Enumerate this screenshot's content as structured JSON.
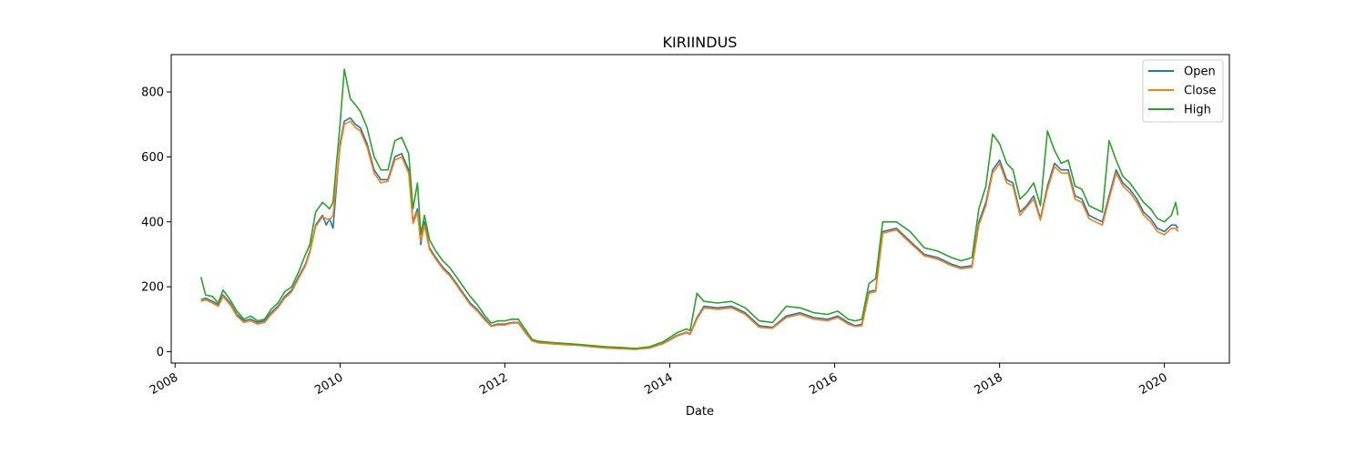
{
  "chart_data": {
    "type": "line",
    "title": "KIRIINDUS",
    "xlabel": "Date",
    "ylabel": "",
    "x_ticks": [
      "2008",
      "2010",
      "2012",
      "2014",
      "2016",
      "2018",
      "2020"
    ],
    "y_ticks": [
      "0",
      "200",
      "400",
      "600",
      "800"
    ],
    "xlim": [
      "2007-12-15",
      "2020-10-15"
    ],
    "ylim": [
      -35,
      915
    ],
    "legend_position": "top-right",
    "grid": false,
    "x": [
      "2008-04-25",
      "2008-05-15",
      "2008-06-15",
      "2008-07-10",
      "2008-08-01",
      "2008-09-01",
      "2008-10-01",
      "2008-11-01",
      "2008-12-01",
      "2009-01-01",
      "2009-02-01",
      "2009-03-01",
      "2009-04-01",
      "2009-05-01",
      "2009-06-01",
      "2009-07-01",
      "2009-08-01",
      "2009-08-20",
      "2009-09-15",
      "2009-10-15",
      "2009-11-01",
      "2009-11-15",
      "2009-12-01",
      "2010-01-01",
      "2010-01-20",
      "2010-02-15",
      "2010-03-10",
      "2010-04-01",
      "2010-05-01",
      "2010-06-01",
      "2010-07-01",
      "2010-08-01",
      "2010-09-01",
      "2010-10-01",
      "2010-11-01",
      "2010-11-20",
      "2010-12-10",
      "2010-12-25",
      "2011-01-10",
      "2011-02-01",
      "2011-03-01",
      "2011-04-01",
      "2011-05-01",
      "2011-06-01",
      "2011-07-01",
      "2011-08-01",
      "2011-09-01",
      "2011-10-01",
      "2011-11-01",
      "2011-12-01",
      "2012-01-01",
      "2012-02-01",
      "2012-03-01",
      "2012-04-01",
      "2012-05-01",
      "2012-06-01",
      "2012-08-01",
      "2012-10-01",
      "2012-12-01",
      "2013-02-01",
      "2013-04-01",
      "2013-06-01",
      "2013-08-01",
      "2013-10-01",
      "2013-12-01",
      "2014-02-01",
      "2014-03-15",
      "2014-04-01",
      "2014-05-01",
      "2014-06-01",
      "2014-08-01",
      "2014-10-01",
      "2014-11-01",
      "2014-12-01",
      "2015-02-01",
      "2015-04-01",
      "2015-06-01",
      "2015-08-01",
      "2015-10-01",
      "2015-12-01",
      "2016-01-15",
      "2016-03-01",
      "2016-04-01",
      "2016-05-01",
      "2016-06-01",
      "2016-07-01",
      "2016-08-01",
      "2016-10-01",
      "2016-12-01",
      "2017-02-01",
      "2017-04-01",
      "2017-06-01",
      "2017-07-15",
      "2017-09-01",
      "2017-10-01",
      "2017-11-01",
      "2017-12-01",
      "2018-01-01",
      "2018-02-01",
      "2018-03-01",
      "2018-04-01",
      "2018-05-01",
      "2018-06-01",
      "2018-07-01",
      "2018-08-01",
      "2018-09-01",
      "2018-10-01",
      "2018-11-01",
      "2018-12-01",
      "2019-01-01",
      "2019-02-01",
      "2019-03-01",
      "2019-04-01",
      "2019-05-01",
      "2019-06-01",
      "2019-07-01",
      "2019-08-01",
      "2019-09-01",
      "2019-10-01",
      "2019-11-01",
      "2019-12-01",
      "2020-01-01",
      "2020-02-01",
      "2020-02-20",
      "2020-03-01"
    ],
    "series": [
      {
        "name": "Open",
        "color": "#1f77b4",
        "values": [
          160,
          165,
          155,
          145,
          175,
          150,
          115,
          95,
          100,
          90,
          95,
          120,
          140,
          170,
          190,
          230,
          270,
          310,
          390,
          420,
          390,
          410,
          380,
          640,
          710,
          720,
          700,
          690,
          640,
          560,
          530,
          530,
          600,
          610,
          560,
          400,
          440,
          330,
          400,
          320,
          290,
          260,
          240,
          210,
          180,
          150,
          130,
          105,
          80,
          85,
          85,
          90,
          90,
          60,
          35,
          28,
          25,
          22,
          20,
          15,
          12,
          10,
          8,
          12,
          25,
          50,
          60,
          55,
          105,
          140,
          135,
          140,
          130,
          120,
          80,
          75,
          110,
          120,
          105,
          100,
          110,
          90,
          80,
          85,
          185,
          190,
          370,
          380,
          340,
          300,
          290,
          270,
          260,
          265,
          400,
          460,
          560,
          590,
          530,
          520,
          430,
          450,
          480,
          410,
          510,
          580,
          560,
          560,
          480,
          470,
          420,
          410,
          400,
          480,
          560,
          520,
          500,
          470,
          430,
          410,
          380,
          370,
          390,
          390,
          380
        ]
      },
      {
        "name": "Close",
        "color": "#ff7f0e",
        "values": [
          155,
          160,
          150,
          140,
          170,
          145,
          110,
          90,
          95,
          85,
          90,
          115,
          135,
          165,
          185,
          225,
          265,
          305,
          385,
          415,
          410,
          405,
          420,
          630,
          700,
          710,
          690,
          680,
          630,
          550,
          520,
          525,
          590,
          600,
          550,
          395,
          430,
          340,
          390,
          315,
          285,
          255,
          235,
          205,
          175,
          145,
          125,
          100,
          78,
          82,
          82,
          88,
          88,
          58,
          33,
          27,
          24,
          21,
          19,
          14,
          11,
          9,
          7,
          11,
          24,
          48,
          58,
          53,
          100,
          135,
          130,
          135,
          125,
          115,
          75,
          72,
          105,
          115,
          100,
          95,
          105,
          85,
          78,
          80,
          180,
          185,
          365,
          375,
          335,
          295,
          285,
          265,
          255,
          260,
          390,
          450,
          550,
          580,
          520,
          510,
          420,
          445,
          470,
          405,
          500,
          570,
          550,
          550,
          470,
          460,
          410,
          400,
          390,
          470,
          550,
          510,
          490,
          460,
          420,
          400,
          370,
          360,
          380,
          380,
          370
        ]
      },
      {
        "name": "High",
        "color": "#2ca02c",
        "values": [
          230,
          175,
          170,
          150,
          190,
          160,
          125,
          100,
          110,
          95,
          100,
          130,
          150,
          185,
          200,
          245,
          300,
          330,
          430,
          460,
          450,
          440,
          460,
          700,
          870,
          780,
          760,
          740,
          690,
          600,
          560,
          560,
          650,
          660,
          610,
          440,
          520,
          360,
          420,
          345,
          310,
          280,
          260,
          230,
          200,
          170,
          145,
          115,
          88,
          95,
          95,
          100,
          100,
          68,
          38,
          32,
          28,
          25,
          22,
          18,
          15,
          13,
          10,
          15,
          30,
          58,
          70,
          65,
          180,
          155,
          150,
          155,
          145,
          135,
          95,
          90,
          140,
          135,
          120,
          115,
          125,
          100,
          95,
          100,
          210,
          225,
          400,
          400,
          370,
          320,
          310,
          290,
          280,
          290,
          440,
          510,
          670,
          640,
          580,
          560,
          470,
          490,
          520,
          450,
          680,
          620,
          580,
          590,
          510,
          500,
          450,
          440,
          430,
          650,
          590,
          540,
          520,
          490,
          460,
          440,
          410,
          400,
          420,
          460,
          420
        ]
      }
    ]
  }
}
